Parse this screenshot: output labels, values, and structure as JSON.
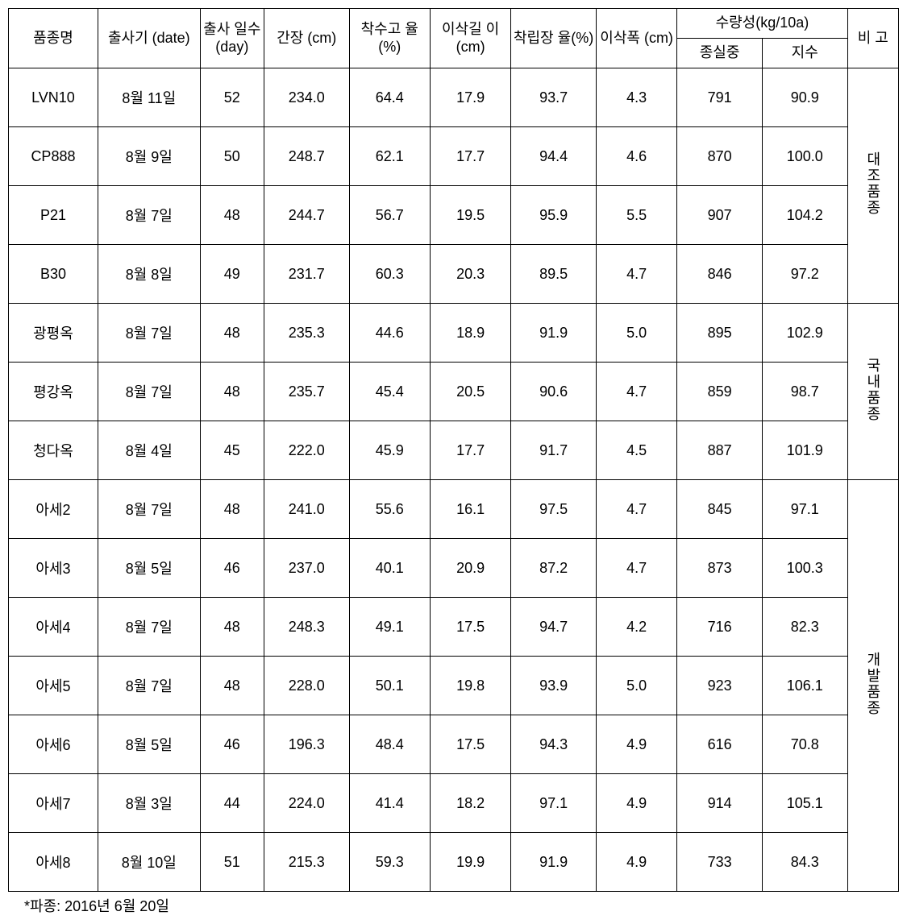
{
  "table": {
    "headers": {
      "name": "품종명",
      "date": "출사기\n(date)",
      "days": "출사\n일수\n(day)",
      "height": "간장\n(cm)",
      "ratio1": "착수고\n율\n(%)",
      "earlen": "이삭길\n이(cm)",
      "ratio2": "착립장\n율(%)",
      "earwidth": "이삭폭\n(cm)",
      "yield_group": "수량성(kg/10a)",
      "yield_w": "종실중",
      "yield_i": "지수",
      "remark": "비\n고"
    },
    "groups": [
      {
        "label": "대조품종",
        "rowspan": 4
      },
      {
        "label": "국내품종",
        "rowspan": 3
      },
      {
        "label": "개발품종",
        "rowspan": 7
      }
    ],
    "rows": [
      {
        "name": "LVN10",
        "date": "8월 11일",
        "days": "52",
        "height": "234.0",
        "ratio1": "64.4",
        "earlen": "17.9",
        "ratio2": "93.7",
        "earwidth": "4.3",
        "yw": "791",
        "yi": "90.9",
        "grp": 0
      },
      {
        "name": "CP888",
        "date": "8월 9일",
        "days": "50",
        "height": "248.7",
        "ratio1": "62.1",
        "earlen": "17.7",
        "ratio2": "94.4",
        "earwidth": "4.6",
        "yw": "870",
        "yi": "100.0",
        "grp": 0
      },
      {
        "name": "P21",
        "date": "8월 7일",
        "days": "48",
        "height": "244.7",
        "ratio1": "56.7",
        "earlen": "19.5",
        "ratio2": "95.9",
        "earwidth": "5.5",
        "yw": "907",
        "yi": "104.2",
        "grp": 0
      },
      {
        "name": "B30",
        "date": "8월 8일",
        "days": "49",
        "height": "231.7",
        "ratio1": "60.3",
        "earlen": "20.3",
        "ratio2": "89.5",
        "earwidth": "4.7",
        "yw": "846",
        "yi": "97.2",
        "grp": 0
      },
      {
        "name": "광평옥",
        "date": "8월 7일",
        "days": "48",
        "height": "235.3",
        "ratio1": "44.6",
        "earlen": "18.9",
        "ratio2": "91.9",
        "earwidth": "5.0",
        "yw": "895",
        "yi": "102.9",
        "grp": 1
      },
      {
        "name": "평강옥",
        "date": "8월 7일",
        "days": "48",
        "height": "235.7",
        "ratio1": "45.4",
        "earlen": "20.5",
        "ratio2": "90.6",
        "earwidth": "4.7",
        "yw": "859",
        "yi": "98.7",
        "grp": 1
      },
      {
        "name": "청다옥",
        "date": "8월 4일",
        "days": "45",
        "height": "222.0",
        "ratio1": "45.9",
        "earlen": "17.7",
        "ratio2": "91.7",
        "earwidth": "4.5",
        "yw": "887",
        "yi": "101.9",
        "grp": 1
      },
      {
        "name": "아세2",
        "date": "8월 7일",
        "days": "48",
        "height": "241.0",
        "ratio1": "55.6",
        "earlen": "16.1",
        "ratio2": "97.5",
        "earwidth": "4.7",
        "yw": "845",
        "yi": "97.1",
        "grp": 2
      },
      {
        "name": "아세3",
        "date": "8월 5일",
        "days": "46",
        "height": "237.0",
        "ratio1": "40.1",
        "earlen": "20.9",
        "ratio2": "87.2",
        "earwidth": "4.7",
        "yw": "873",
        "yi": "100.3",
        "grp": 2
      },
      {
        "name": "아세4",
        "date": "8월 7일",
        "days": "48",
        "height": "248.3",
        "ratio1": "49.1",
        "earlen": "17.5",
        "ratio2": "94.7",
        "earwidth": "4.2",
        "yw": "716",
        "yi": "82.3",
        "grp": 2
      },
      {
        "name": "아세5",
        "date": "8월 7일",
        "days": "48",
        "height": "228.0",
        "ratio1": "50.1",
        "earlen": "19.8",
        "ratio2": "93.9",
        "earwidth": "5.0",
        "yw": "923",
        "yi": "106.1",
        "grp": 2
      },
      {
        "name": "아세6",
        "date": "8월 5일",
        "days": "46",
        "height": "196.3",
        "ratio1": "48.4",
        "earlen": "17.5",
        "ratio2": "94.3",
        "earwidth": "4.9",
        "yw": "616",
        "yi": "70.8",
        "grp": 2
      },
      {
        "name": "아세7",
        "date": "8월 3일",
        "days": "44",
        "height": "224.0",
        "ratio1": "41.4",
        "earlen": "18.2",
        "ratio2": "97.1",
        "earwidth": "4.9",
        "yw": "914",
        "yi": "105.1",
        "grp": 2
      },
      {
        "name": "아세8",
        "date": "8월 10일",
        "days": "51",
        "height": "215.3",
        "ratio1": "59.3",
        "earlen": "19.9",
        "ratio2": "91.9",
        "earwidth": "4.9",
        "yw": "733",
        "yi": "84.3",
        "grp": 2
      }
    ]
  },
  "footnote": "*파종: 2016년 6월 20일"
}
